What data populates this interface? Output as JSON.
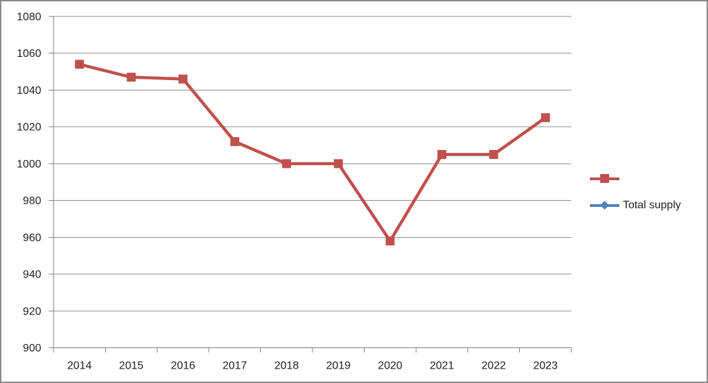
{
  "chart_data": {
    "type": "line",
    "title": "",
    "xlabel": "",
    "ylabel": "",
    "categories": [
      "2014",
      "2015",
      "2016",
      "2017",
      "2018",
      "2019",
      "2020",
      "2021",
      "2022",
      "2023"
    ],
    "series": [
      {
        "name": "",
        "color": "#C0504D",
        "marker": "square",
        "values": [
          1054,
          1047,
          1046,
          1012,
          1000,
          1000,
          958,
          1005,
          1005,
          1025
        ]
      },
      {
        "name": "Total supply",
        "color": "#4F81BD",
        "marker": "diamond",
        "values": []
      }
    ],
    "ylim": [
      900,
      1080
    ],
    "ytick_step": 20,
    "ytick_labels": [
      "900",
      "920",
      "940",
      "960",
      "980",
      "1000",
      "1020",
      "1040",
      "1060",
      "1080"
    ],
    "grid": true,
    "legend_position": "right"
  },
  "colors": {
    "series_red": "#C0504D",
    "series_blue": "#4F81BD",
    "gridline": "#8e8e8e",
    "axis": "#7f7f7f",
    "text": "#1f1f1f",
    "frame_border": "#8a8a8a",
    "background": "#ffffff"
  }
}
